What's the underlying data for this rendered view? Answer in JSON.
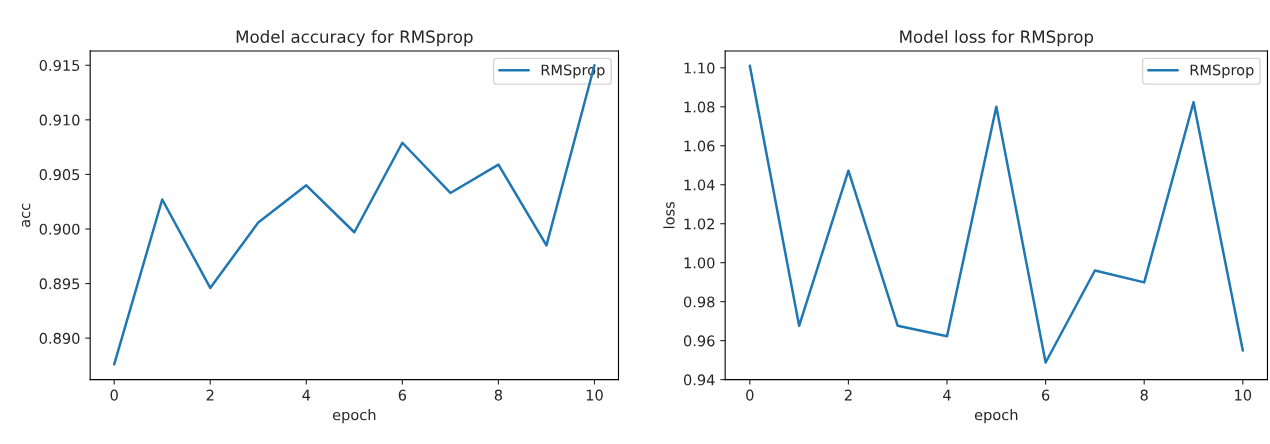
{
  "chart_data": [
    {
      "type": "line",
      "title": "Model accuracy for RMSprop",
      "xlabel": "epoch",
      "ylabel": "acc",
      "x": [
        0,
        1,
        2,
        3,
        4,
        5,
        6,
        7,
        8,
        9,
        10
      ],
      "series": [
        {
          "name": "RMSprop",
          "color": "#1f77b4",
          "values": [
            0.8876,
            0.9027,
            0.8946,
            0.9006,
            0.904,
            0.8997,
            0.9079,
            0.9033,
            0.9059,
            0.8985,
            0.915
          ]
        }
      ],
      "xlim": [
        -0.5,
        10.5
      ],
      "xticks": [
        0,
        2,
        4,
        6,
        8,
        10
      ],
      "ylim": [
        0.8862,
        0.9163
      ],
      "yticks": [
        {
          "value": 0.89,
          "label": "0.890"
        },
        {
          "value": 0.895,
          "label": "0.895"
        },
        {
          "value": 0.9,
          "label": "0.900"
        },
        {
          "value": 0.905,
          "label": "0.905"
        },
        {
          "value": 0.91,
          "label": "0.910"
        },
        {
          "value": 0.915,
          "label": "0.915"
        }
      ],
      "legend": "top right",
      "grid": false
    },
    {
      "type": "line",
      "title": "Model loss for RMSprop",
      "xlabel": "epoch",
      "ylabel": "loss",
      "x": [
        0,
        1,
        2,
        3,
        4,
        5,
        6,
        7,
        8,
        9,
        10
      ],
      "series": [
        {
          "name": "RMSprop",
          "color": "#1f77b4",
          "values": [
            1.1011,
            0.9676,
            1.0472,
            0.9676,
            0.9623,
            1.08,
            0.9488,
            0.996,
            0.9899,
            1.0823,
            0.9549
          ]
        }
      ],
      "xlim": [
        -0.5,
        10.5
      ],
      "xticks": [
        0,
        2,
        4,
        6,
        8,
        10
      ],
      "ylim": [
        0.94,
        1.1086
      ],
      "yticks": [
        {
          "value": 0.94,
          "label": "0.94"
        },
        {
          "value": 0.96,
          "label": "0.96"
        },
        {
          "value": 0.98,
          "label": "0.98"
        },
        {
          "value": 1.0,
          "label": "1.00"
        },
        {
          "value": 1.02,
          "label": "1.02"
        },
        {
          "value": 1.04,
          "label": "1.04"
        },
        {
          "value": 1.06,
          "label": "1.06"
        },
        {
          "value": 1.08,
          "label": "1.08"
        },
        {
          "value": 1.1,
          "label": "1.10"
        }
      ],
      "legend": "top right",
      "grid": false
    }
  ]
}
